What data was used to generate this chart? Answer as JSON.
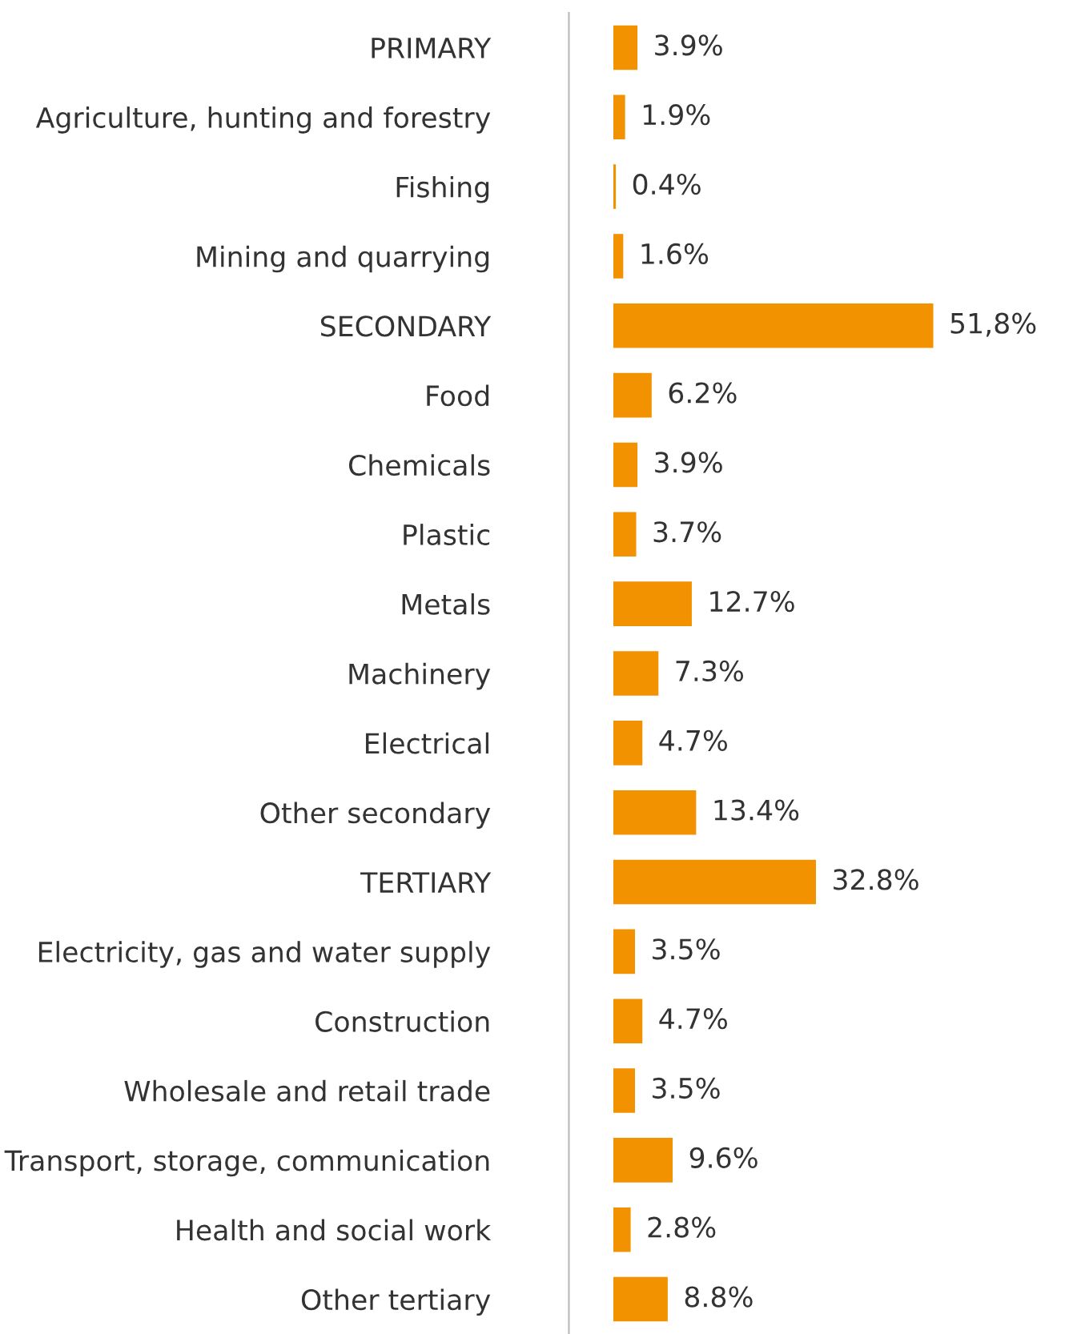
{
  "chart_data": {
    "type": "bar",
    "orientation": "horizontal",
    "categories": [
      "PRIMARY",
      "Agriculture, hunting and forestry",
      "Fishing",
      "Mining and quarrying",
      "SECONDARY",
      "Food",
      "Chemicals",
      "Plastic",
      "Metals",
      "Machinery",
      "Electrical",
      "Other secondary",
      "TERTIARY",
      "Electricity, gas and water supply",
      "Construction",
      "Wholesale and retail trade",
      "Transport, storage, communication",
      "Health and social work",
      "Other tertiary"
    ],
    "values": [
      3.9,
      1.9,
      0.4,
      1.6,
      51.8,
      6.2,
      3.9,
      3.7,
      12.7,
      7.3,
      4.7,
      13.4,
      32.8,
      3.5,
      4.7,
      3.5,
      9.6,
      2.8,
      8.8
    ],
    "value_labels": [
      "3.9%",
      "1.9%",
      "0.4%",
      "1.6%",
      "51,8%",
      "6.2%",
      "3.9%",
      "3.7%",
      "12.7%",
      "7.3%",
      "4.7%",
      "13.4%",
      "32.8%",
      "3.5%",
      "4.7%",
      "3.5%",
      "9.6%",
      "2.8%",
      "8.8%"
    ],
    "color": "#f39200",
    "grid": false,
    "legend": false
  }
}
